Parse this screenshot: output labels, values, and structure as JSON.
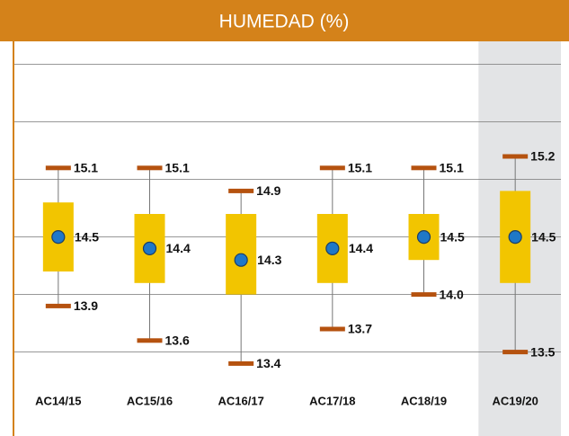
{
  "chart_data": {
    "type": "box",
    "title": "HUMEDAD (%)",
    "categories": [
      "AC14/15",
      "AC15/16",
      "AC16/17",
      "AC17/18",
      "AC18/19",
      "AC19/20"
    ],
    "max": [
      15.1,
      15.1,
      14.9,
      15.1,
      15.1,
      15.2
    ],
    "max_labels": [
      "15.1",
      "15.1",
      "14.9",
      "15.1",
      "15.1",
      "15.2"
    ],
    "q3": [
      14.8,
      14.7,
      14.7,
      14.7,
      14.7,
      14.9
    ],
    "mean": [
      14.5,
      14.4,
      14.3,
      14.4,
      14.5,
      14.5
    ],
    "mean_labels": [
      "14.5",
      "14.4",
      "14.3",
      "14.4",
      "14.5",
      "14.5"
    ],
    "q1": [
      14.2,
      14.1,
      14.0,
      14.1,
      14.3,
      14.1
    ],
    "min": [
      13.9,
      13.6,
      13.4,
      13.7,
      14.0,
      13.5
    ],
    "min_labels": [
      "13.9",
      "13.6",
      "13.4",
      "13.7",
      "14.0",
      "13.5"
    ],
    "ylim": [
      13.2,
      16.2
    ],
    "yticks": [
      13.5,
      14,
      14.5,
      15,
      15.5,
      16
    ],
    "grid": true,
    "highlight_index": 5,
    "box_color": "#f2c500",
    "cap_color": "#b5520f",
    "mean_color": "#1f78c8",
    "title_color": "#d4821a"
  }
}
